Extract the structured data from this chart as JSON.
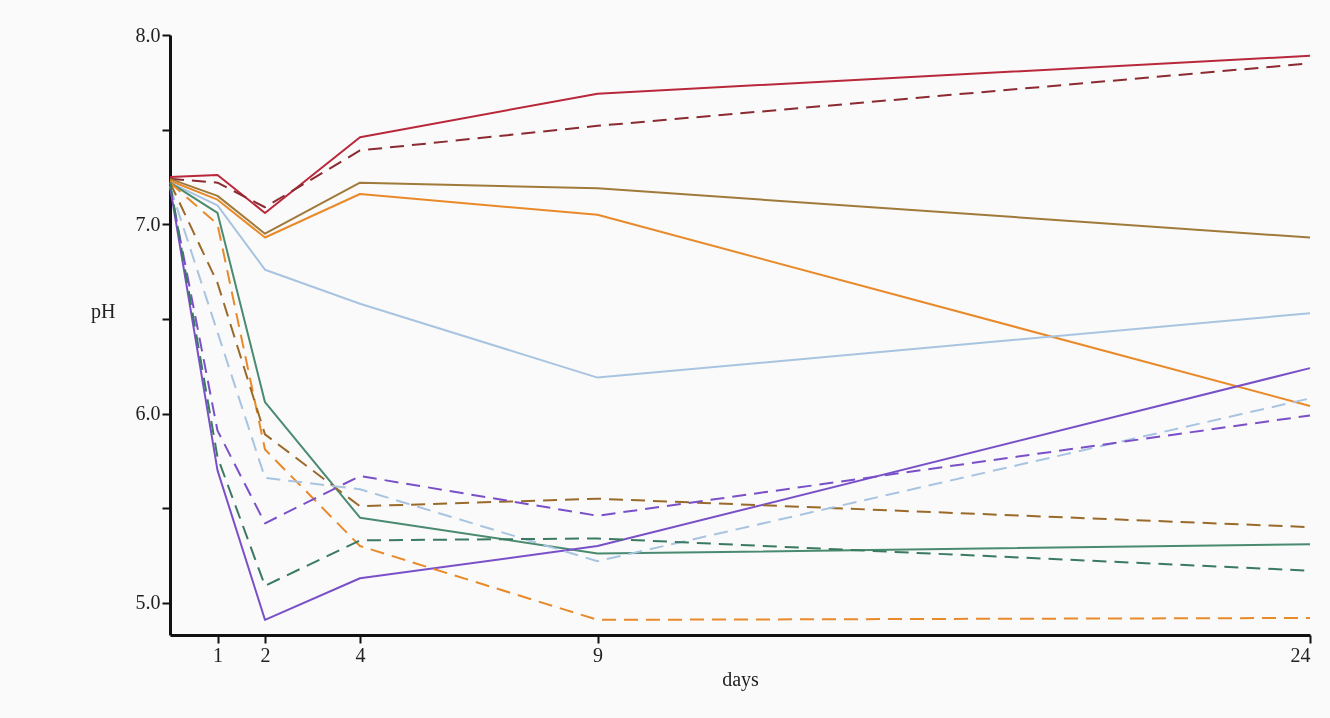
{
  "chart_data": {
    "type": "line",
    "xlabel": "days",
    "ylabel": "pH",
    "x": [
      0,
      1,
      2,
      4,
      9,
      24
    ],
    "xlim": [
      0,
      24
    ],
    "xticks": [
      1,
      2,
      4,
      9,
      24
    ],
    "ylim": [
      4.83,
      8.0
    ],
    "yticks": [
      {
        "value": 5,
        "label": "5.0"
      },
      {
        "value": 5.5,
        "label": null
      },
      {
        "value": 6,
        "label": "6.0"
      },
      {
        "value": 6.5,
        "label": null
      },
      {
        "value": 7,
        "label": "7.0"
      },
      {
        "value": 7.5,
        "label": null
      },
      {
        "value": 8,
        "label": "8.0"
      }
    ],
    "series": [
      {
        "color": "#b8283a",
        "line_style": "solid",
        "values": [
          7.25,
          7.26,
          7.06,
          7.46,
          7.69,
          7.89
        ]
      },
      {
        "color": "#8b2a30",
        "line_style": "dashed",
        "values": [
          7.24,
          7.22,
          7.09,
          7.39,
          7.52,
          7.85
        ]
      },
      {
        "color": "#a07a3a",
        "line_style": "solid",
        "values": [
          7.24,
          7.15,
          6.95,
          7.22,
          7.19,
          6.93
        ]
      },
      {
        "color": "#e88a2a",
        "line_style": "solid",
        "values": [
          7.23,
          7.13,
          6.93,
          7.16,
          7.05,
          6.04
        ]
      },
      {
        "color": "#a8c4e0",
        "line_style": "solid",
        "values": [
          7.22,
          7.1,
          6.76,
          6.58,
          6.19,
          6.53
        ]
      },
      {
        "color": "#4a8a70",
        "line_style": "solid",
        "values": [
          7.22,
          7.06,
          6.06,
          5.45,
          5.26,
          5.31
        ]
      },
      {
        "color": "#7a50c8",
        "line_style": "solid",
        "values": [
          7.2,
          5.7,
          4.91,
          5.13,
          5.3,
          6.24
        ]
      },
      {
        "color": "#e88a2a",
        "line_style": "dashed",
        "values": [
          7.22,
          7.0,
          5.81,
          5.3,
          4.91,
          4.92
        ]
      },
      {
        "color": "#9a6a2a",
        "line_style": "dashed",
        "values": [
          7.22,
          6.69,
          5.89,
          5.51,
          5.55,
          5.4
        ]
      },
      {
        "color": "#a8c4e0",
        "line_style": "dashed",
        "values": [
          7.2,
          6.43,
          5.66,
          5.6,
          5.22,
          6.08
        ]
      },
      {
        "color": "#7a50c8",
        "line_style": "dashed",
        "values": [
          7.2,
          5.91,
          5.42,
          5.67,
          5.46,
          5.99
        ]
      },
      {
        "color": "#3a7a60",
        "line_style": "dashed",
        "values": [
          7.22,
          5.77,
          5.09,
          5.33,
          5.34,
          5.17
        ]
      }
    ]
  }
}
